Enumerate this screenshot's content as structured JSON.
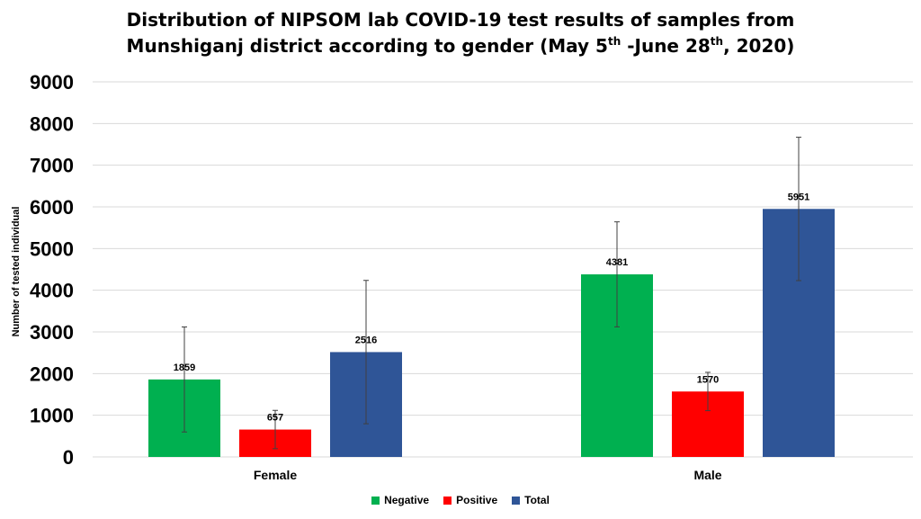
{
  "chart_data": {
    "type": "bar",
    "title": {
      "line1": "Distribution of NIPSOM lab COVID-19 test results of samples from",
      "line2_a": "Munshiganj district according to gender  (May 5",
      "sup1": "th",
      "line2_b": " -June 28",
      "sup2": "th",
      "line2_c": ", 2020)"
    },
    "ylabel": "Number of tested individual",
    "xlabel": "",
    "categories": [
      "Female",
      "Male"
    ],
    "series": [
      {
        "name": "Negative",
        "color": "#00b050",
        "values": [
          1859,
          4381
        ],
        "error": [
          1260,
          1260
        ]
      },
      {
        "name": "Positive",
        "color": "#ff0000",
        "values": [
          657,
          1570
        ],
        "error": [
          460,
          460
        ]
      },
      {
        "name": "Total",
        "color": "#2f5597",
        "values": [
          2516,
          5951
        ],
        "error": [
          1720,
          1720
        ]
      }
    ],
    "data_labels": [
      [
        "1859",
        "4381"
      ],
      [
        "657",
        "1570"
      ],
      [
        "2516",
        "5951"
      ]
    ],
    "ylim": [
      0,
      9000
    ],
    "yticks": [
      "0",
      "1000",
      "2000",
      "3000",
      "4000",
      "5000",
      "6000",
      "7000",
      "8000",
      "9000"
    ],
    "grid": true,
    "legend_position": "bottom"
  }
}
